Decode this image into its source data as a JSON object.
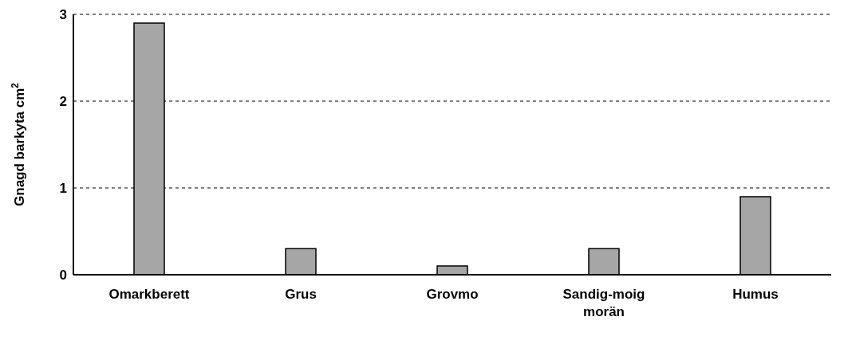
{
  "chart_data": {
    "type": "bar",
    "ylabel": "Gnagd barkyta cm$^{2}$",
    "categories": [
      "Omarkberett",
      "Grus",
      "Grovmo",
      "Sandig-moig morän",
      "Humus"
    ],
    "values": [
      2.9,
      0.3,
      0.1,
      0.3,
      0.9
    ],
    "color": "#a6a6a6",
    "ylim": [
      0,
      3
    ],
    "yticks": [
      0,
      1,
      2,
      3
    ],
    "grid": "y",
    "legend": false
  }
}
